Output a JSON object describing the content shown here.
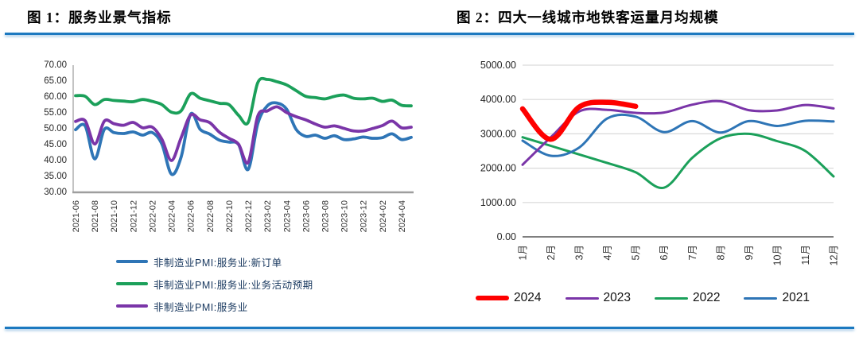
{
  "accent_rule_color": "#1c79c0",
  "figure1": {
    "title": "图 1：服务业景气指标"
  },
  "figure2": {
    "title": "图 2：四大一线城市地铁客运量月均规模"
  },
  "chart_data": [
    {
      "id": "fig1",
      "type": "line",
      "title": "图 1：服务业景气指标",
      "x": [
        "2021-06",
        "2021-07",
        "2021-08",
        "2021-09",
        "2021-10",
        "2021-11",
        "2021-12",
        "2022-01",
        "2022-02",
        "2022-03",
        "2022-04",
        "2022-05",
        "2022-06",
        "2022-07",
        "2022-08",
        "2022-09",
        "2022-10",
        "2022-11",
        "2022-12",
        "2023-01",
        "2023-02",
        "2023-03",
        "2023-04",
        "2023-05",
        "2023-06",
        "2023-07",
        "2023-08",
        "2023-09",
        "2023-10",
        "2023-11",
        "2023-12",
        "2024-01",
        "2024-02",
        "2024-03",
        "2024-04",
        "2024-05"
      ],
      "x_tick_every": 2,
      "ylim": [
        30,
        70
      ],
      "ytick_step": 5,
      "y_tick_labels": [
        "70.00",
        "65.00",
        "60.00",
        "55.00",
        "50.00",
        "45.00",
        "40.00",
        "35.00",
        "30.00"
      ],
      "grid": false,
      "legend_position": "bottom-left-column",
      "series": [
        {
          "name": "非制造业PMI:服务业:新订单",
          "color": "#2e75b6",
          "width": 3.8,
          "values": [
            49.7,
            50.9,
            40.5,
            49.8,
            48.8,
            48.5,
            49.0,
            48.0,
            48.8,
            45.2,
            35.7,
            41.0,
            54.6,
            49.8,
            48.3,
            46.4,
            45.8,
            45.0,
            37.2,
            51.6,
            57.2,
            58.1,
            56.2,
            49.8,
            47.6,
            48.0,
            47.0,
            47.8,
            46.6,
            46.8,
            47.4,
            47.0,
            47.2,
            48.4,
            46.6,
            47.3
          ]
        },
        {
          "name": "非制造业PMI:服务业:业务活动预期",
          "color": "#1ba05a",
          "width": 3.8,
          "values": [
            60.4,
            60.2,
            57.6,
            59.2,
            58.9,
            58.7,
            58.5,
            59.2,
            58.6,
            57.6,
            55.2,
            55.6,
            61.0,
            59.6,
            58.8,
            58.0,
            57.6,
            54.2,
            52.0,
            64.5,
            65.5,
            64.8,
            63.8,
            62.0,
            60.2,
            59.8,
            59.4,
            60.2,
            60.6,
            59.6,
            59.4,
            59.6,
            58.6,
            59.0,
            57.4,
            57.2
          ]
        },
        {
          "name": "非制造业PMI:服务业",
          "color": "#7a35a8",
          "width": 3.8,
          "values": [
            52.3,
            52.5,
            45.2,
            52.4,
            51.6,
            51.1,
            52.0,
            50.3,
            50.5,
            46.7,
            40.0,
            47.1,
            54.3,
            52.8,
            51.9,
            48.9,
            47.0,
            45.1,
            39.4,
            54.0,
            55.6,
            56.9,
            55.1,
            53.8,
            52.8,
            51.5,
            50.5,
            50.9,
            50.1,
            49.3,
            49.3,
            50.1,
            51.0,
            52.4,
            50.3,
            50.5
          ]
        }
      ]
    },
    {
      "id": "fig2",
      "type": "line",
      "title": "图 2：四大一线城市地铁客运量月均规模",
      "x": [
        "1月",
        "2月",
        "3月",
        "4月",
        "5月",
        "6月",
        "7月",
        "8月",
        "9月",
        "10月",
        "11月",
        "12月"
      ],
      "x_tick_every": 1,
      "ylim": [
        0,
        5000
      ],
      "ytick_step": 1000,
      "y_tick_labels": [
        "5000.00",
        "4000.00",
        "3000.00",
        "2000.00",
        "1000.00",
        "0.00"
      ],
      "grid": true,
      "legend_position": "bottom-center-row",
      "series": [
        {
          "name": "2024",
          "color": "#fe0000",
          "width": 6.5,
          "values": [
            3730,
            2840,
            3780,
            3920,
            3800
          ]
        },
        {
          "name": "2023",
          "color": "#7a35a8",
          "width": 3,
          "values": [
            2100,
            2900,
            3650,
            3700,
            3610,
            3620,
            3850,
            3950,
            3690,
            3680,
            3840,
            3740
          ]
        },
        {
          "name": "2022",
          "color": "#1ba05a",
          "width": 3,
          "values": [
            2900,
            2650,
            2400,
            2150,
            1880,
            1430,
            2300,
            2870,
            3000,
            2790,
            2500,
            1760
          ]
        },
        {
          "name": "2021",
          "color": "#2e75b6",
          "width": 3,
          "values": [
            2800,
            2360,
            2600,
            3450,
            3500,
            3050,
            3370,
            3040,
            3370,
            3230,
            3380,
            3360
          ]
        }
      ]
    }
  ]
}
